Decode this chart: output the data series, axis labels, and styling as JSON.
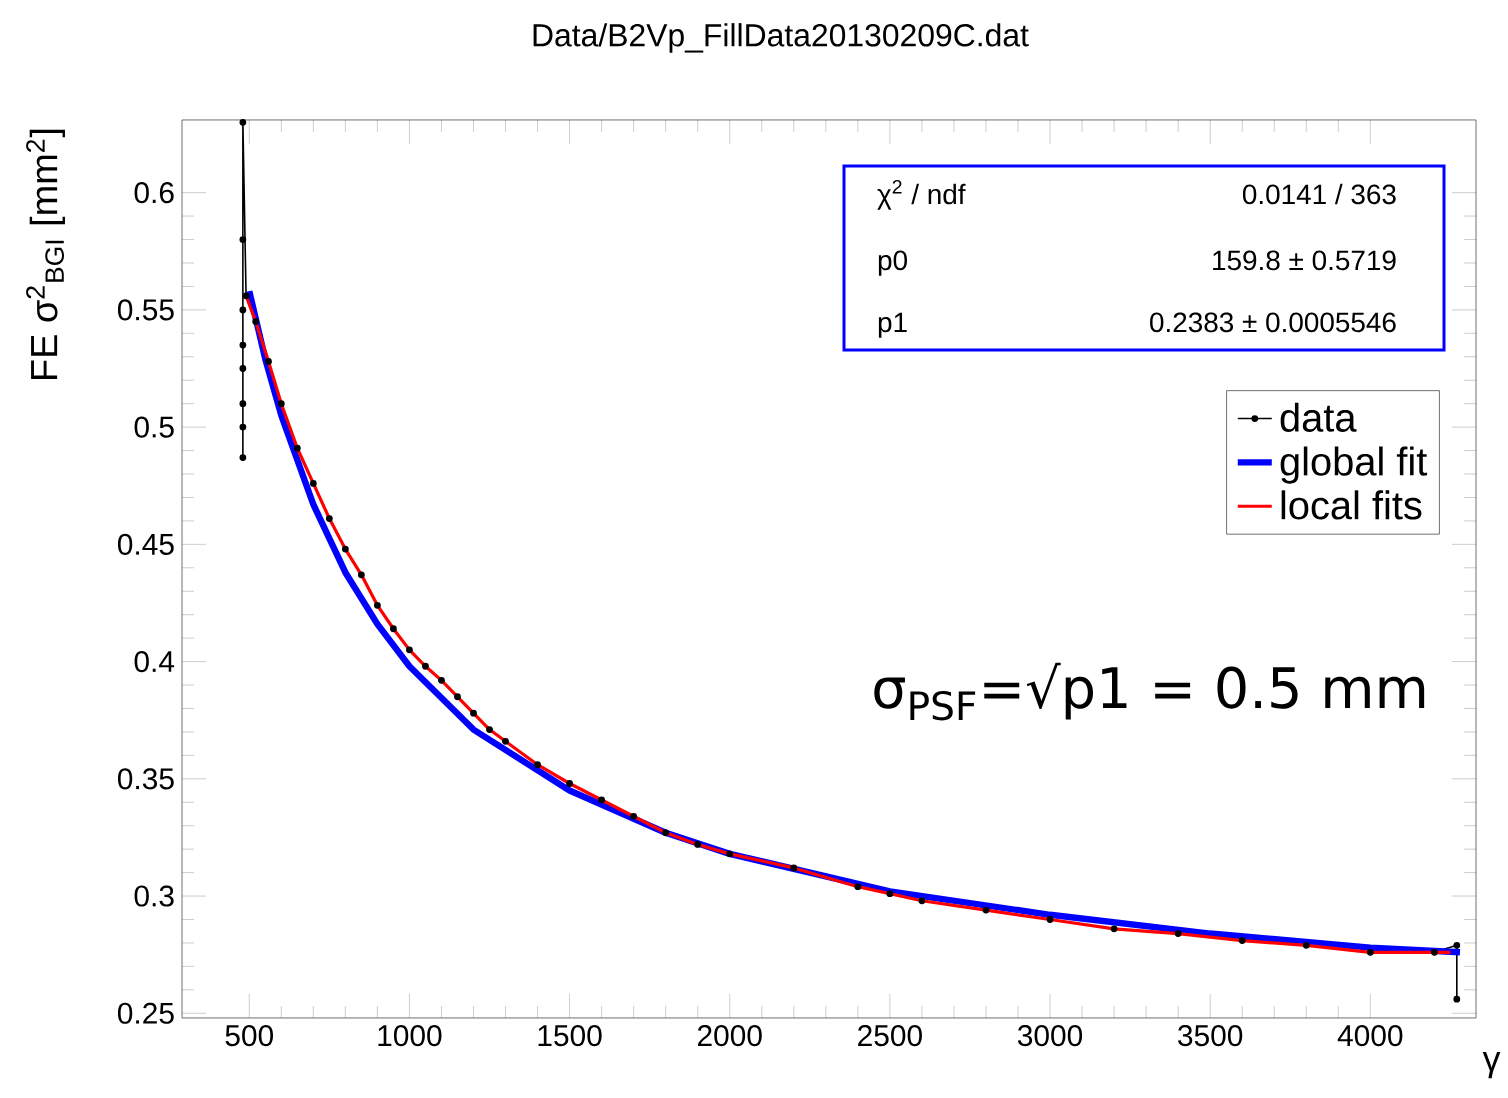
{
  "chart_data": {
    "type": "line",
    "title": "Data/B2Vp_FillData20130209C.dat",
    "xlabel": "γ",
    "ylabel": "FE σ$^{2}$$_{BGI}$ [mm$^{2}$]",
    "xlim": [
      290,
      4330
    ],
    "ylim": [
      0.248,
      0.631
    ],
    "xticks": [
      500,
      1000,
      1500,
      2000,
      2500,
      3000,
      3500,
      4000
    ],
    "yticks": [
      0.25,
      0.3,
      0.35,
      0.4,
      0.45,
      0.5,
      0.55,
      0.6
    ],
    "legend": "top right",
    "grid": false,
    "annotations": [
      "χ$^{2}$ / ndf",
      "0.0141 / 363",
      "p0",
      "159.8 ± 0.5719",
      "p1",
      "0.2383 ± 0.0005546",
      "σ$_{PSF}$=√p1 = 0.5 mm"
    ],
    "series": [
      {
        "name": "data",
        "color": "#000000",
        "marker": "circle",
        "x": [
          480,
          480,
          480,
          480,
          480,
          480,
          480,
          480,
          490,
          520,
          560,
          600,
          650,
          700,
          750,
          800,
          850,
          900,
          950,
          1000,
          1050,
          1100,
          1150,
          1200,
          1250,
          1300,
          1400,
          1500,
          1600,
          1700,
          1800,
          1900,
          2000,
          2200,
          2400,
          2500,
          2600,
          2800,
          3000,
          3200,
          3400,
          3600,
          3800,
          4000,
          4200,
          4270,
          4270
        ],
        "values": [
          0.487,
          0.5,
          0.51,
          0.525,
          0.535,
          0.55,
          0.58,
          0.63,
          0.556,
          0.545,
          0.528,
          0.51,
          0.491,
          0.476,
          0.461,
          0.448,
          0.437,
          0.424,
          0.414,
          0.405,
          0.398,
          0.392,
          0.385,
          0.378,
          0.371,
          0.366,
          0.356,
          0.348,
          0.341,
          0.334,
          0.327,
          0.322,
          0.318,
          0.312,
          0.304,
          0.301,
          0.298,
          0.294,
          0.29,
          0.286,
          0.284,
          0.281,
          0.279,
          0.276,
          0.276,
          0.279,
          0.256
        ]
      },
      {
        "name": "global fit",
        "color": "#0000ff",
        "x": [
          500,
          550,
          600,
          700,
          800,
          900,
          1000,
          1200,
          1500,
          1800,
          2000,
          2500,
          3000,
          3500,
          4000,
          4280
        ],
        "values": [
          0.558,
          0.529,
          0.505,
          0.467,
          0.438,
          0.416,
          0.398,
          0.371,
          0.345,
          0.327,
          0.318,
          0.302,
          0.292,
          0.284,
          0.278,
          0.276
        ]
      },
      {
        "name": "local fits",
        "color": "#ff0000",
        "x": [
          490,
          520,
          560,
          600,
          650,
          700,
          750,
          800,
          850,
          900,
          950,
          1000,
          1050,
          1100,
          1150,
          1200,
          1250,
          1300,
          1400,
          1500,
          1600,
          1700,
          1800,
          1900,
          2000,
          2200,
          2400,
          2500,
          2600,
          2800,
          3000,
          3200,
          3400,
          3600,
          3800,
          4000,
          4250
        ],
        "values": [
          0.556,
          0.545,
          0.528,
          0.51,
          0.491,
          0.476,
          0.461,
          0.448,
          0.437,
          0.424,
          0.414,
          0.405,
          0.398,
          0.392,
          0.385,
          0.378,
          0.371,
          0.366,
          0.356,
          0.348,
          0.341,
          0.334,
          0.327,
          0.322,
          0.318,
          0.312,
          0.304,
          0.301,
          0.298,
          0.294,
          0.29,
          0.286,
          0.284,
          0.281,
          0.279,
          0.276,
          0.276
        ]
      }
    ]
  }
}
